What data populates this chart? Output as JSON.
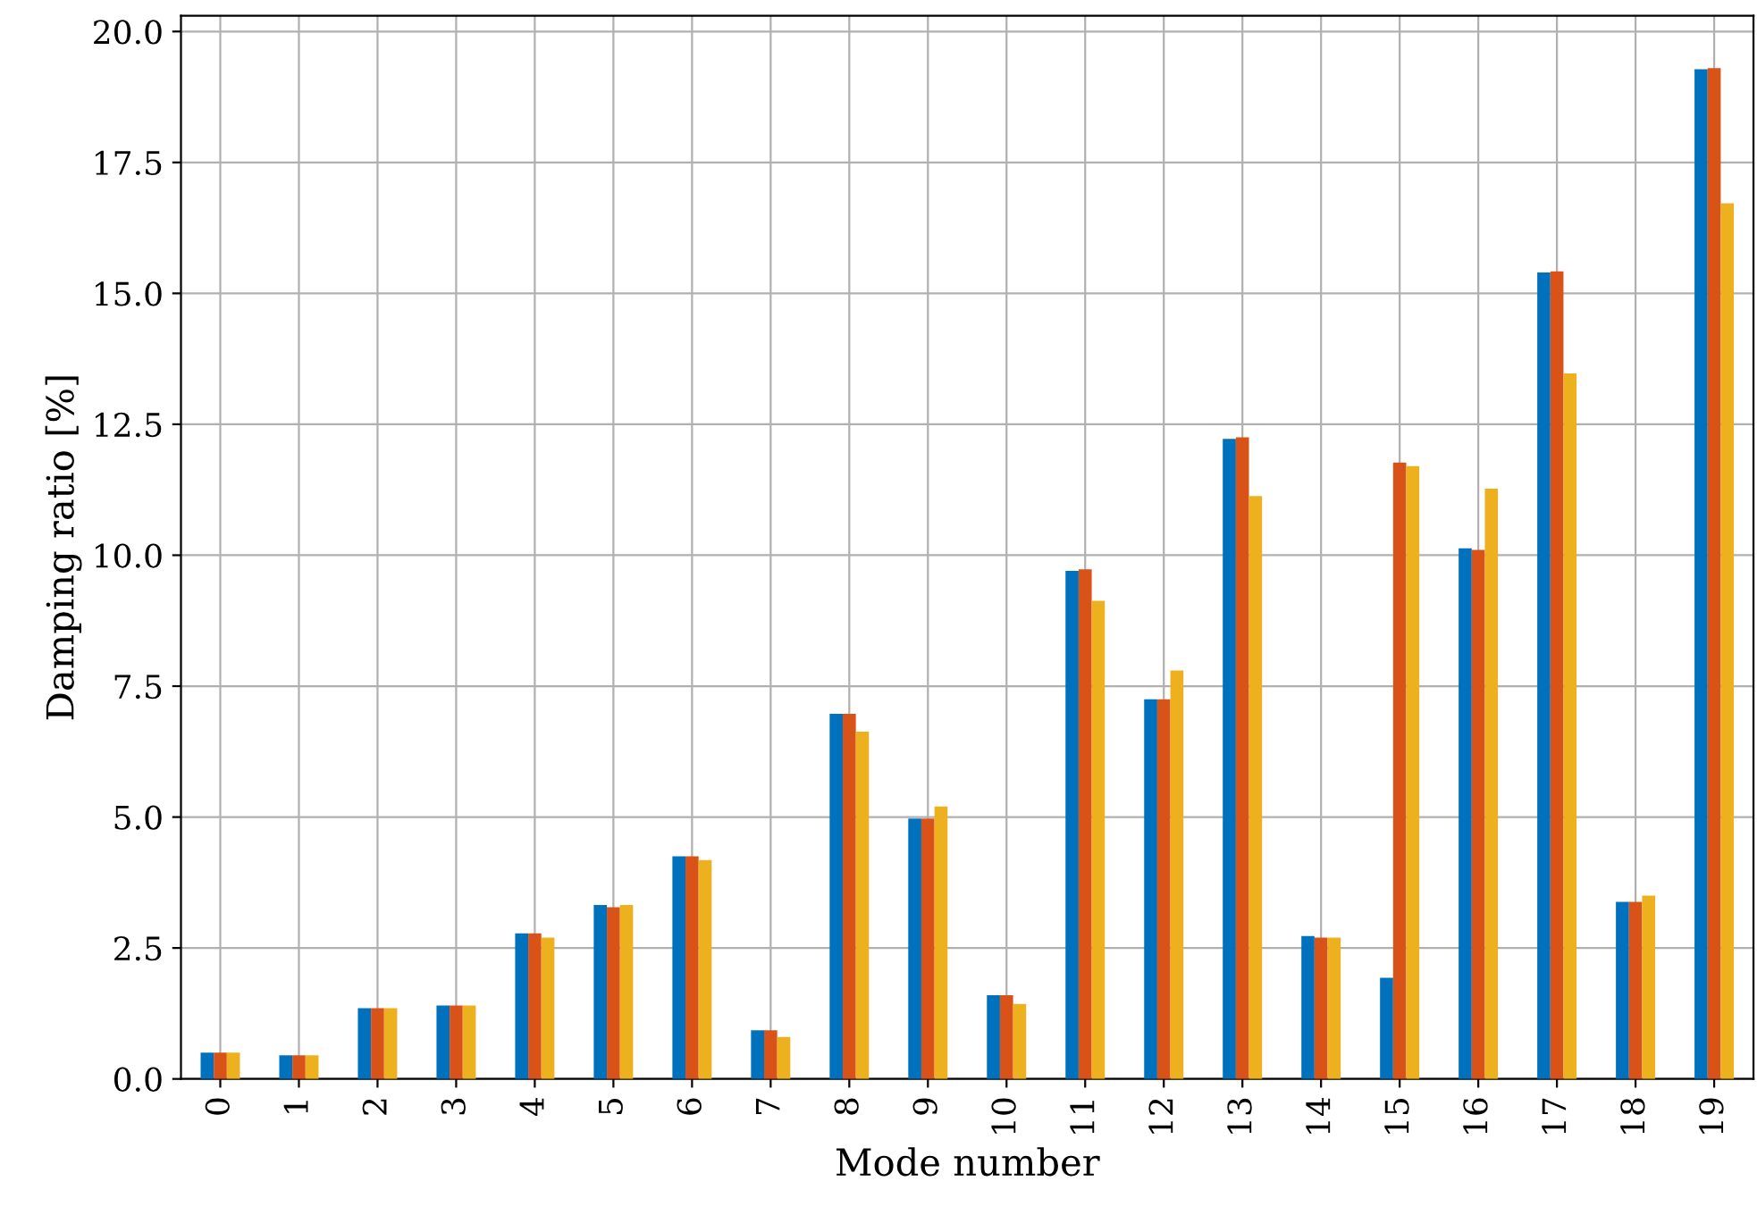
{
  "chart_data": {
    "type": "bar",
    "xlabel": "Mode number",
    "ylabel": "Damping ratio [%]",
    "categories": [
      "0",
      "1",
      "2",
      "3",
      "4",
      "5",
      "6",
      "7",
      "8",
      "9",
      "10",
      "11",
      "12",
      "13",
      "14",
      "15",
      "16",
      "17",
      "18",
      "19"
    ],
    "series": [
      {
        "color": "#0072bd",
        "values": [
          0.5,
          0.45,
          1.35,
          1.4,
          2.78,
          3.32,
          4.25,
          0.93,
          6.97,
          4.97,
          1.6,
          9.7,
          7.25,
          12.22,
          2.73,
          1.93,
          10.13,
          15.4,
          3.38,
          19.28
        ]
      },
      {
        "color": "#d95319",
        "values": [
          0.5,
          0.45,
          1.35,
          1.4,
          2.78,
          3.28,
          4.25,
          0.93,
          6.97,
          4.97,
          1.6,
          9.73,
          7.25,
          12.25,
          2.7,
          11.77,
          10.1,
          15.42,
          3.38,
          19.3
        ]
      },
      {
        "color": "#edb120",
        "values": [
          0.5,
          0.45,
          1.35,
          1.4,
          2.7,
          3.32,
          4.18,
          0.8,
          6.63,
          5.2,
          1.43,
          9.13,
          7.8,
          11.13,
          2.7,
          11.7,
          11.27,
          13.47,
          3.5,
          16.72
        ]
      }
    ],
    "ylim": [
      0,
      20.3
    ],
    "yticks": [
      {
        "value": 0,
        "label": "0.0"
      },
      2.5,
      {
        "value": 5,
        "label": "5.0"
      },
      7.5,
      {
        "value": 10,
        "label": "10.0"
      },
      12.5,
      {
        "value": 15,
        "label": "15.0"
      },
      17.5,
      {
        "value": 20,
        "label": "20.0"
      }
    ],
    "grid": true
  }
}
